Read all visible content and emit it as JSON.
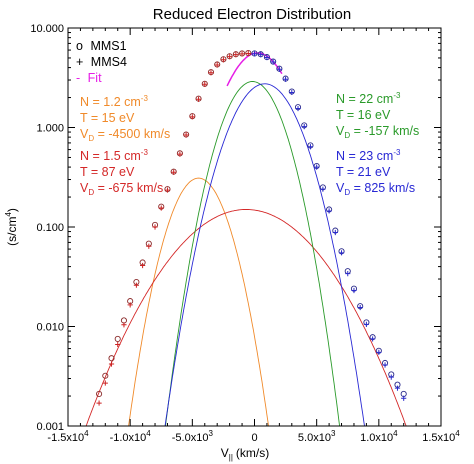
{
  "chart_data": {
    "type": "scatter",
    "title": "Reduced Electron Distribution",
    "xlabel": "V",
    "xlabel_sub": "||",
    "xlabel_unit": "(km/s)",
    "ylabel": "(s/cm",
    "ylabel_sup": "4",
    "ylabel_close": ")",
    "xlim": [
      -15000,
      15000
    ],
    "ylim": [
      0.001,
      10
    ],
    "yscale": "log",
    "x_ticks": [
      {
        "value": -15000,
        "label": "-1.5x10",
        "exp": "4"
      },
      {
        "value": -10000,
        "label": "-1.0x10",
        "exp": "4"
      },
      {
        "value": -5000,
        "label": "-5.0x10",
        "exp": "3"
      },
      {
        "value": 0,
        "label": "0",
        "exp": ""
      },
      {
        "value": 5000,
        "label": "5.0x10",
        "exp": "3"
      },
      {
        "value": 10000,
        "label": "1.0x10",
        "exp": "4"
      },
      {
        "value": 15000,
        "label": "1.5x10",
        "exp": "4"
      }
    ],
    "y_ticks": [
      {
        "value": 0.001,
        "label": "0.001"
      },
      {
        "value": 0.01,
        "label": "0.010"
      },
      {
        "value": 0.1,
        "label": "0.100"
      },
      {
        "value": 1,
        "label": "1.000"
      },
      {
        "value": 10,
        "label": "10.000"
      }
    ],
    "legend": {
      "placement": "top-left",
      "entries": [
        {
          "marker": "o",
          "label": "MMS1",
          "color": "#000000"
        },
        {
          "marker": "+",
          "label": "MMS4",
          "color": "#000000"
        },
        {
          "marker": "-",
          "label": "Fit",
          "color": "#e61ee6"
        }
      ]
    },
    "series": [
      {
        "name": "MMS1",
        "kind": "points",
        "marker": "circle",
        "color_left": "#8a2a2a",
        "color_right": "#2a2a8a",
        "x": [
          -12500,
          -12000,
          -11500,
          -11000,
          -10500,
          -10000,
          -9500,
          -9000,
          -8500,
          -8000,
          -7500,
          -7000,
          -6500,
          -6000,
          -5500,
          -5000,
          -4500,
          -4000,
          -3500,
          -3000,
          -2500,
          -2000,
          -1500,
          -1000,
          -500,
          0,
          500,
          1000,
          1500,
          2000,
          2500,
          3000,
          3500,
          4000,
          4500,
          5000,
          5500,
          6000,
          6500,
          7000,
          7500,
          8000,
          8500,
          9000,
          9500,
          10000,
          10500,
          11000,
          11500,
          12000
        ],
        "y": [
          0.0021,
          0.0032,
          0.0048,
          0.0075,
          0.0115,
          0.018,
          0.028,
          0.044,
          0.068,
          0.105,
          0.16,
          0.24,
          0.36,
          0.55,
          0.85,
          1.3,
          1.95,
          2.75,
          3.6,
          4.3,
          4.85,
          5.2,
          5.45,
          5.55,
          5.6,
          5.55,
          5.45,
          5.1,
          4.6,
          3.9,
          3.1,
          2.3,
          1.6,
          1.05,
          0.66,
          0.41,
          0.25,
          0.15,
          0.092,
          0.057,
          0.036,
          0.024,
          0.016,
          0.011,
          0.0078,
          0.0057,
          0.0043,
          0.0033,
          0.0026,
          0.0021
        ]
      },
      {
        "name": "MMS4",
        "kind": "points",
        "marker": "plus",
        "color_left": "#cc2222",
        "color_right": "#2a2acc",
        "x": [
          -12500,
          -12000,
          -11500,
          -11000,
          -10500,
          -10000,
          -9500,
          -9000,
          -8500,
          -8000,
          -7500,
          -7000,
          -6500,
          -6000,
          -5500,
          -5000,
          -4500,
          -4000,
          -3500,
          -3000,
          -2500,
          -2000,
          -1500,
          -1000,
          -500,
          0,
          500,
          1000,
          1500,
          2000,
          2500,
          3000,
          3500,
          4000,
          4500,
          5000,
          5500,
          6000,
          6500,
          7000,
          7500,
          8000,
          8500,
          9000,
          9500,
          10000,
          10500,
          11000,
          11500,
          12000
        ],
        "y": [
          0.0017,
          0.0027,
          0.0042,
          0.0066,
          0.0104,
          0.0165,
          0.026,
          0.041,
          0.064,
          0.1,
          0.155,
          0.235,
          0.355,
          0.54,
          0.84,
          1.28,
          1.92,
          2.72,
          3.55,
          4.25,
          4.8,
          5.15,
          5.4,
          5.5,
          5.55,
          5.5,
          5.4,
          5.05,
          4.55,
          3.85,
          3.05,
          2.25,
          1.55,
          1.02,
          0.64,
          0.4,
          0.24,
          0.145,
          0.088,
          0.055,
          0.034,
          0.023,
          0.0155,
          0.0105,
          0.0075,
          0.0055,
          0.0041,
          0.0031,
          0.0024,
          0.0019
        ]
      },
      {
        "name": "",
        "kind": "curve",
        "color": "#f08a2a",
        "params": {
          "N": 1.2,
          "T": 15,
          "VD": -4500,
          "peak": 0.31,
          "vth": 2350
        }
      },
      {
        "name": "",
        "kind": "curve",
        "color": "#d42828",
        "params": {
          "N": 1.5,
          "T": 87,
          "VD": -675,
          "peak": 0.15,
          "vth": 5750
        }
      },
      {
        "name": "",
        "kind": "curve",
        "color": "#2a9a2a",
        "params": {
          "N": 22,
          "T": 16,
          "VD": -157,
          "peak": 2.9,
          "vth": 2480
        }
      },
      {
        "name": "",
        "kind": "curve",
        "color": "#2828d4",
        "params": {
          "N": 23,
          "T": 21,
          "VD": 825,
          "peak": 2.75,
          "vth": 2850
        }
      },
      {
        "name": "Fit",
        "kind": "curve",
        "color": "#e61ee6",
        "sum": true
      }
    ],
    "annotations": [
      {
        "id": "orange",
        "color": "#f08a2a",
        "placement": "left-upper",
        "N": "N = 1.2 cm",
        "N_exp": "-3",
        "T": "T = 15 eV",
        "VD_label": "V",
        "VD_sub": "D",
        "VD_value": " = -4500 km/s"
      },
      {
        "id": "red",
        "color": "#d42828",
        "placement": "left-lower",
        "N": "N = 1.5 cm",
        "N_exp": "-3",
        "T": "T = 87 eV",
        "VD_label": "V",
        "VD_sub": "D",
        "VD_value": " = -675 km/s"
      },
      {
        "id": "green",
        "color": "#2a9a2a",
        "placement": "right-upper",
        "N": "N = 22 cm",
        "N_exp": "-3",
        "T": "T = 16 eV",
        "VD_label": "V",
        "VD_sub": "D",
        "VD_value": " =  -157 km/s"
      },
      {
        "id": "blue",
        "color": "#2828d4",
        "placement": "right-lower",
        "N": "N = 23 cm",
        "N_exp": "-3",
        "T": "T =  21 eV",
        "VD_label": "V",
        "VD_sub": "D",
        "VD_value": " =  825 km/s"
      }
    ]
  }
}
